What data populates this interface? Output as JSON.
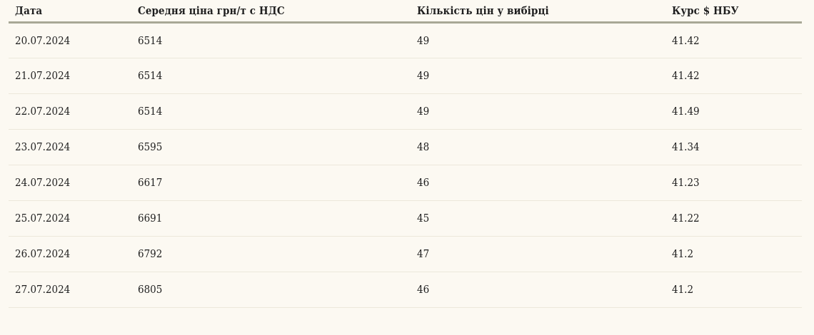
{
  "table": {
    "columns": [
      {
        "label": "Дата"
      },
      {
        "label": "Середня ціна грн/т с НДС"
      },
      {
        "label": "Кількість цін у вибірці"
      },
      {
        "label": "Курс $ НБУ"
      }
    ],
    "rows": [
      [
        "20.07.2024",
        "6514",
        "49",
        "41.42"
      ],
      [
        "21.07.2024",
        "6514",
        "49",
        "41.42"
      ],
      [
        "22.07.2024",
        "6514",
        "49",
        "41.49"
      ],
      [
        "23.07.2024",
        "6595",
        "48",
        "41.34"
      ],
      [
        "24.07.2024",
        "6617",
        "46",
        "41.23"
      ],
      [
        "25.07.2024",
        "6691",
        "45",
        "41.22"
      ],
      [
        "26.07.2024",
        "6792",
        "47",
        "41.2"
      ],
      [
        "27.07.2024",
        "6805",
        "46",
        "41.2"
      ]
    ]
  },
  "colors": {
    "background": "#FCF9F2",
    "header_rule": "#A8A896",
    "row_separator": "#ECE8DB",
    "text": "#1E1E1E"
  }
}
